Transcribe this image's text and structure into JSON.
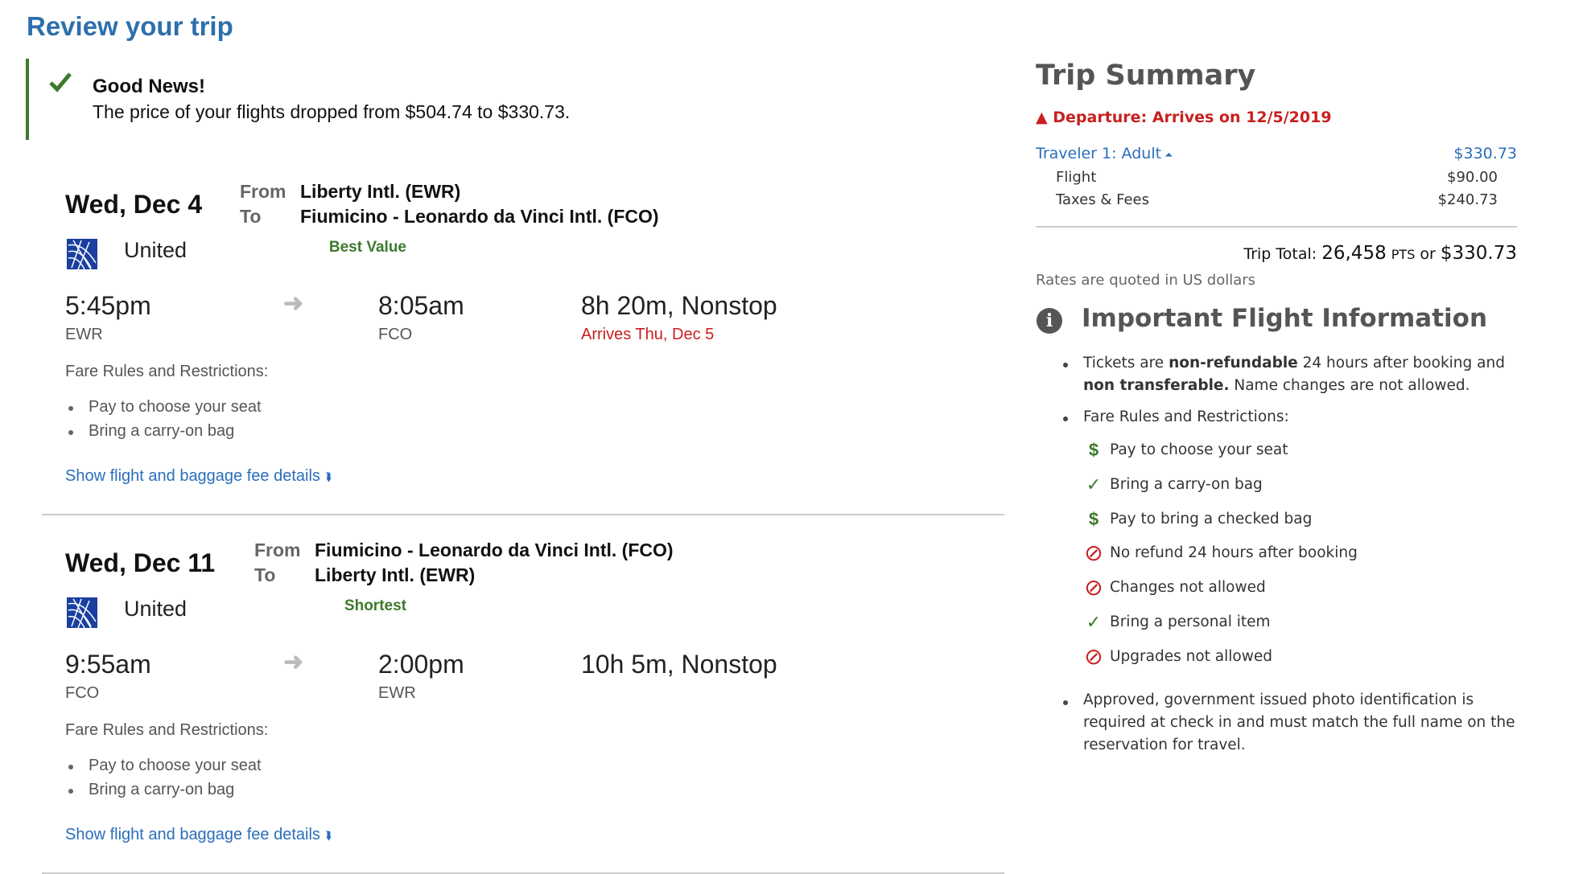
{
  "page_title": "Review your trip",
  "alert": {
    "title": "Good News!",
    "message": "The price of your flights dropped from $504.74 to $330.73.",
    "icon": "check-icon",
    "color": "#3d7a2b"
  },
  "flights": [
    {
      "date": "Wed, Dec 4",
      "from_label": "From",
      "from": "Liberty Intl. (EWR)",
      "to_label": "To",
      "to": "Fiumicino - Leonardo da Vinci Intl. (FCO)",
      "airline": "United",
      "tag": "Best Value",
      "depart_time": "5:45pm",
      "depart_code": "EWR",
      "arrive_time": "8:05am",
      "arrive_code": "FCO",
      "duration": "8h 20m, Nonstop",
      "arrival_note": "Arrives Thu, Dec 5",
      "fare_title": "Fare Rules and Restrictions:",
      "fare_rules": [
        "Pay to choose your seat",
        "Bring a carry-on bag"
      ],
      "details_link": "Show flight and baggage fee details"
    },
    {
      "date": "Wed, Dec 11",
      "from_label": "From",
      "from": "Fiumicino - Leonardo da Vinci Intl. (FCO)",
      "to_label": "To",
      "to": "Liberty Intl. (EWR)",
      "airline": "United",
      "tag": "Shortest",
      "depart_time": "9:55am",
      "depart_code": "FCO",
      "arrive_time": "2:00pm",
      "arrive_code": "EWR",
      "duration": "10h 5m, Nonstop",
      "fare_title": "Fare Rules and Restrictions:",
      "fare_rules": [
        "Pay to choose your seat",
        "Bring a carry-on bag"
      ],
      "details_link": "Show flight and baggage fee details"
    }
  ],
  "summary": {
    "title": "Trip Summary",
    "departure_warning": "Departure: Arrives on 12/5/2019",
    "traveler_label": "Traveler 1: Adult",
    "traveler_amount": "$330.73",
    "lines": [
      {
        "label": "Flight",
        "amount": "$90.00"
      },
      {
        "label": "Taxes & Fees",
        "amount": "$240.73"
      }
    ],
    "total_label": "Trip Total:",
    "total_points": "26,458",
    "points_unit": "PTS",
    "or": "or",
    "total_amount": "$330.73",
    "rates_note": "Rates are quoted in US dollars"
  },
  "important": {
    "title": "Important Flight Information",
    "tickets": {
      "p1": "Tickets are ",
      "b1": "non-refundable",
      "p2": " 24 hours after booking and",
      "b2": "non transferable.",
      "p3": " Name changes are not allowed."
    },
    "fare_title": "Fare Rules and Restrictions:",
    "rules": [
      {
        "icon": "dollar",
        "text": "Pay to choose your seat"
      },
      {
        "icon": "check",
        "text": "Bring a carry-on bag"
      },
      {
        "icon": "dollar",
        "text": "Pay to bring a checked bag"
      },
      {
        "icon": "no",
        "text": "No refund 24 hours after booking"
      },
      {
        "icon": "no",
        "text": "Changes not allowed"
      },
      {
        "icon": "check",
        "text": "Bring a personal item"
      },
      {
        "icon": "no",
        "text": "Upgrades not allowed"
      }
    ],
    "id_note_lines": [
      "Approved, government issued photo identification is",
      "required at check in and must match the full name on the",
      "reservation for travel."
    ]
  },
  "colors": {
    "accent": "#2e6fac",
    "link": "#2a6ebb",
    "positive": "#3d7a2b",
    "warning": "#c8201f"
  }
}
